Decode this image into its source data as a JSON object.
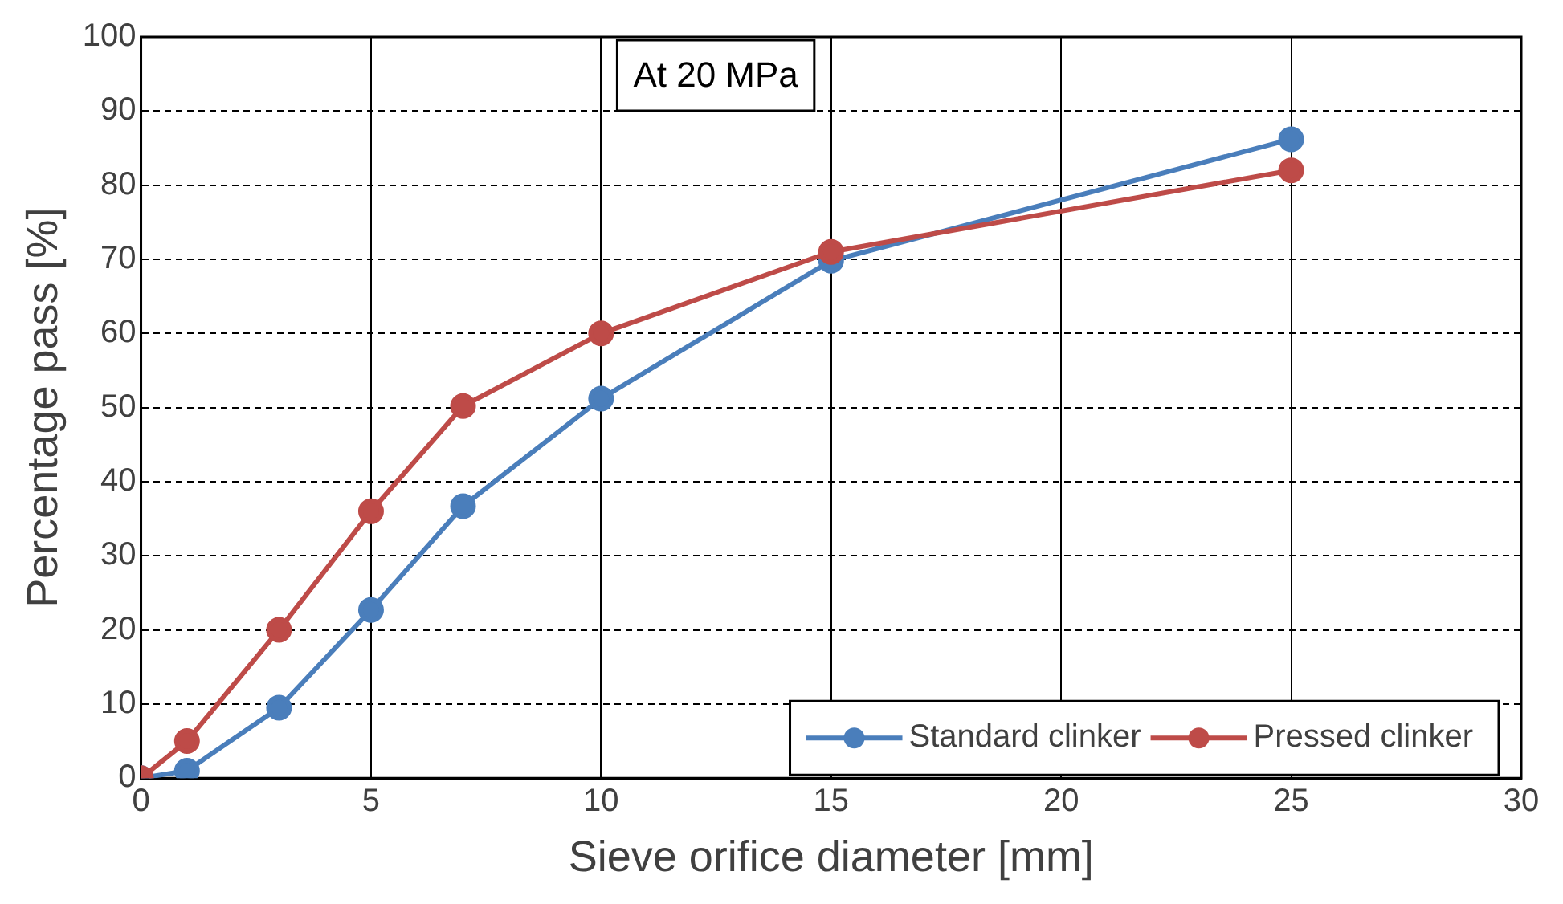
{
  "chart_data": {
    "type": "line",
    "xlabel": "Sieve orifice diameter [mm]",
    "ylabel": "Percentage pass [%]",
    "annotations": [
      "At 20 MPa"
    ],
    "series": [
      {
        "name": "Standard clinker",
        "color": "#4a7ebb",
        "x": [
          0,
          1,
          3,
          5,
          7,
          10,
          15,
          25
        ],
        "values": [
          0,
          1,
          9.5,
          22.7,
          36.7,
          51.2,
          69.8,
          86.2
        ]
      },
      {
        "name": "Pressed clinker",
        "color": "#be4b48",
        "x": [
          0,
          1,
          3,
          5,
          7,
          10,
          15,
          25
        ],
        "values": [
          0,
          5,
          20,
          36,
          50.2,
          60,
          71,
          82
        ]
      }
    ],
    "xlim": [
      0,
      30
    ],
    "xticks": [
      0,
      5,
      10,
      15,
      20,
      25,
      30
    ],
    "ylim": [
      0,
      100
    ],
    "yticks": [
      0,
      10,
      20,
      30,
      40,
      50,
      60,
      70,
      80,
      90,
      100
    ],
    "grid": true,
    "legend": "bottom right",
    "marker": "circle",
    "line_style": "solid"
  }
}
